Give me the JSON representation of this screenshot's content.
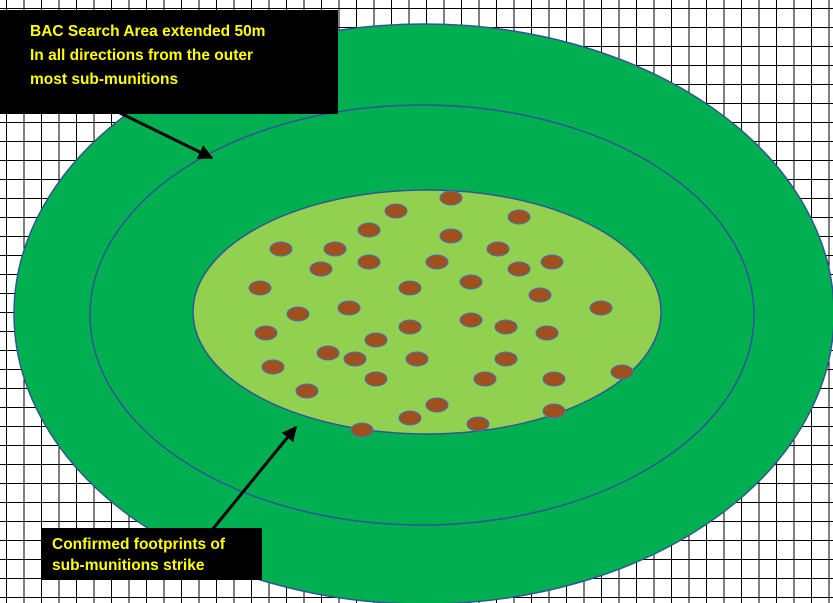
{
  "colors": {
    "outer_zone": "#00b050",
    "inner_zone": "#92d050",
    "zone_border": "#2f5597",
    "sub_munition_fill": "#a0501c",
    "sub_munition_border": "#4472c4",
    "callout_background": "#000000",
    "callout_text": "#ffff00",
    "grid": "#000000"
  },
  "callouts": {
    "search_area": {
      "lines": [
        "BAC Search Area extended 50m",
        "In all directions from the outer",
        "most sub-munitions"
      ]
    },
    "footprint": {
      "lines": [
        "Confirmed footprints of",
        "sub-munitions strike"
      ]
    }
  },
  "icons": {
    "sub_munition": "brown-oval-marker",
    "arrow": "black-arrow"
  }
}
